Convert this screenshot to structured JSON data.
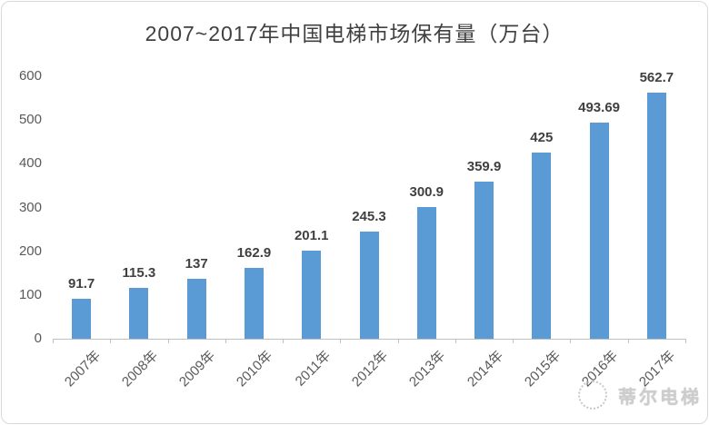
{
  "chart": {
    "title": "2007~2017年中国电梯市场保有量（万台）",
    "title_color": "#404040",
    "frame_border_color": "#d9d9d9",
    "watermark": {
      "logo": "dotted-circle-logo",
      "text": "蒂尔电梯",
      "color": "#bdbdbd"
    }
  },
  "chart_data": {
    "type": "bar",
    "title": "2007~2017年中国电梯市场保有量（万台）",
    "xlabel": "",
    "ylabel": "",
    "categories": [
      "2007年",
      "2008年",
      "2009年",
      "2010年",
      "2011年",
      "2012年",
      "2013年",
      "2014年",
      "2015年",
      "2016年",
      "2017年"
    ],
    "values": [
      91.7,
      115.3,
      137,
      162.9,
      201.1,
      245.3,
      300.9,
      359.9,
      425,
      493.69,
      562.7
    ],
    "data_labels": [
      "91.7",
      "115.3",
      "137",
      "162.9",
      "201.1",
      "245.3",
      "300.9",
      "359.9",
      "425",
      "493.69",
      "562.7"
    ],
    "ylim": [
      0,
      600
    ],
    "yticks": [
      0,
      100,
      200,
      300,
      400,
      500,
      600
    ],
    "grid": false,
    "legend": "none",
    "bar_color": "#5B9BD5",
    "axis_line_color": "#bfbfbf",
    "tick_label_color": "#595959",
    "data_label_color": "#404040"
  }
}
